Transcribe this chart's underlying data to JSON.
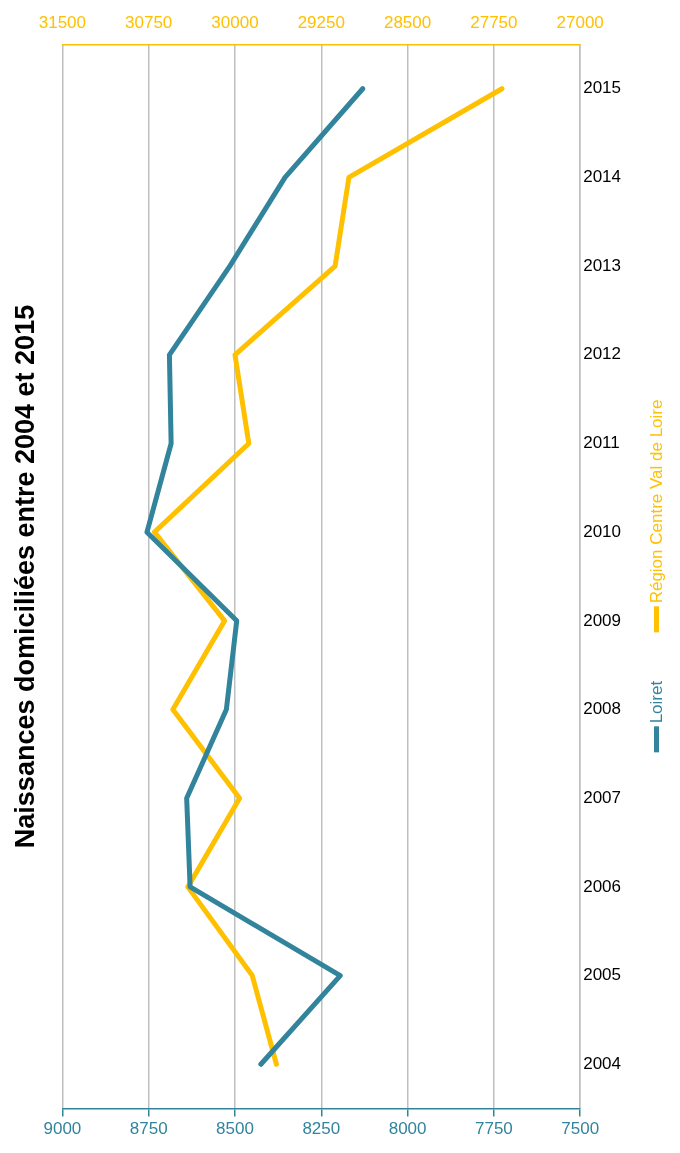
{
  "chart_data": {
    "type": "line",
    "orientation": "horizontal",
    "title": "Naissances domiciliées entre 2004 et 2015",
    "categories": [
      "2015",
      "2014",
      "2013",
      "2012",
      "2011",
      "2010",
      "2009",
      "2008",
      "2007",
      "2006",
      "2005",
      "2004"
    ],
    "series": [
      {
        "name": "Loiret",
        "color": "#31849b",
        "values": [
          8130,
          8355,
          8515,
          8690,
          8685,
          8755,
          8495,
          8525,
          8640,
          8630,
          8195,
          8425
        ]
      },
      {
        "name": "Région Centre Val de Loire",
        "color": "#ffc000",
        "axis": "x2",
        "values": [
          27680,
          29010,
          29130,
          30000,
          29880,
          30700,
          30090,
          30540,
          29960,
          30410,
          29850,
          29640
        ]
      }
    ],
    "xlim": [
      9000,
      7500
    ],
    "xticks": [
      9000,
      8750,
      8500,
      8250,
      8000,
      7750,
      7500
    ],
    "x2lim": [
      31500,
      27000
    ],
    "x2ticks": [
      31500,
      30750,
      30000,
      29250,
      28500,
      27750,
      27000
    ],
    "grid": "x",
    "legend": "right",
    "marker": "none",
    "line_style": "solid"
  }
}
